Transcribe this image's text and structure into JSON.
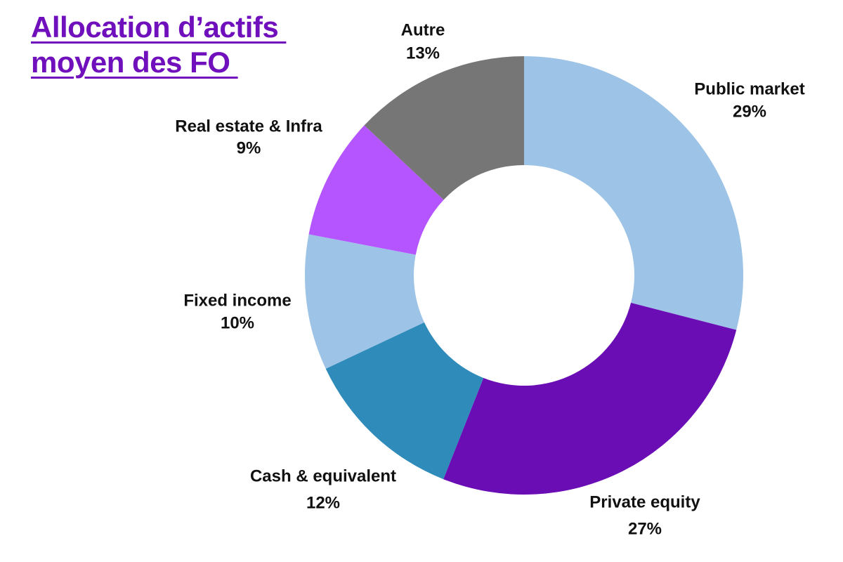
{
  "title": {
    "line1": "Allocation d’actifs ",
    "line2": "moyen des FO "
  },
  "colors": {
    "title": "#7010BC",
    "label_text": "#111111"
  },
  "chart_data": {
    "type": "pie",
    "variant": "donut",
    "title": "Allocation d’actifs moyen des FO",
    "legend": "none",
    "slices": [
      {
        "label": "Public market",
        "value_label": "29%",
        "value": 29,
        "color": "#9DC3E6"
      },
      {
        "label": "Private equity",
        "value_label": "27%",
        "value": 27,
        "color": "#6A0DB5"
      },
      {
        "label": "Cash & equivalent",
        "value_label": "12%",
        "value": 12,
        "color": "#2E8BBA"
      },
      {
        "label": "Fixed income",
        "value_label": "10%",
        "value": 10,
        "color": "#9DC3E6"
      },
      {
        "label": "Real estate & Infra",
        "value_label": "9%",
        "value": 9,
        "color": "#B455FF"
      },
      {
        "label": "Autre",
        "value_label": "13%",
        "value": 13,
        "color": "#767676"
      }
    ]
  }
}
